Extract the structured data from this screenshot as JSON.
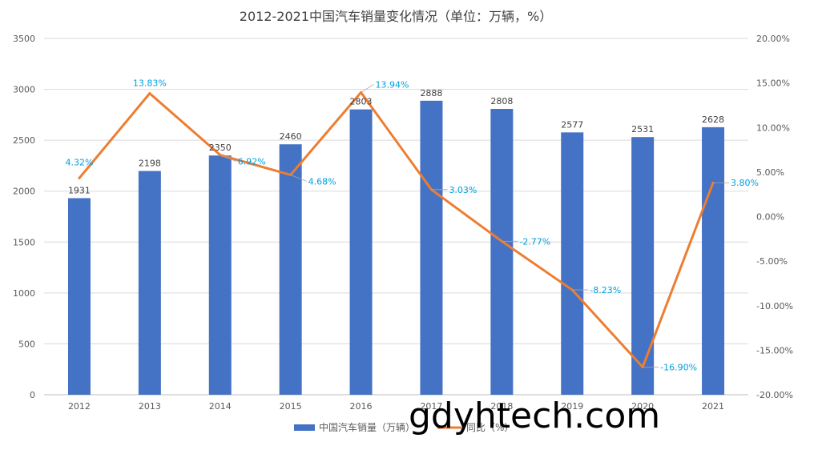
{
  "chart_data": {
    "type": "bar+line",
    "title": "2012-2021中国汽车销量变化情况（单位：万辆，%）",
    "categories": [
      "2012",
      "2013",
      "2014",
      "2015",
      "2016",
      "2017",
      "2018",
      "2019",
      "2020",
      "2021"
    ],
    "series": [
      {
        "name": "中国汽车销量（万辆）",
        "type": "bar",
        "axis": "left",
        "color": "#4472C4",
        "values": [
          1931,
          2198,
          2350,
          2460,
          2803,
          2888,
          2808,
          2577,
          2531,
          2628
        ],
        "labels": [
          "1931",
          "2198",
          "2350",
          "2460",
          "2803",
          "2888",
          "2808",
          "2577",
          "2531",
          "2628"
        ]
      },
      {
        "name": "同比（%）",
        "type": "line",
        "axis": "right",
        "color": "#ED7D31",
        "values": [
          4.32,
          13.83,
          6.92,
          4.68,
          13.94,
          3.03,
          -2.77,
          -8.23,
          -16.9,
          3.8
        ],
        "labels": [
          "4.32%",
          "13.83%",
          "6.92%",
          "4.68%",
          "13.94%",
          "3.03%",
          "-2.77%",
          "-8.23%",
          "-16.90%",
          "3.80%"
        ]
      }
    ],
    "y_left": {
      "min": 0,
      "max": 3500,
      "ticks": [
        "0",
        "500",
        "1000",
        "1500",
        "2000",
        "2500",
        "3000",
        "3500"
      ]
    },
    "y_right": {
      "min": -20,
      "max": 20,
      "ticks": [
        "-20.00%",
        "-15.00%",
        "-10.00%",
        "-5.00%",
        "0.00%",
        "5.00%",
        "10.00%",
        "15.00%",
        "20.00%"
      ]
    },
    "grid": true,
    "legend_position": "bottom"
  },
  "watermark": "gdyhtech.com"
}
